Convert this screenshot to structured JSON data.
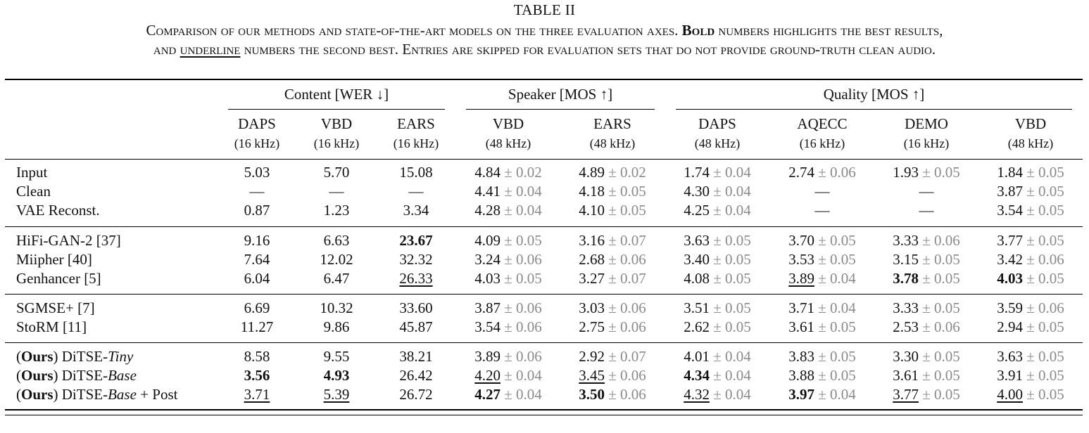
{
  "table_label": "TABLE II",
  "caption": {
    "line1_a": "Comparison of our methods and state-of-the-art models on the three evaluation axes. ",
    "bold_word": "Bold",
    "line1_b": " numbers highlights the best results,",
    "line2_a": "and ",
    "underline_word": "underline",
    "line2_b": " numbers the second best. Entries are skipped for evaluation sets that do not provide ground-truth clean audio."
  },
  "groups": [
    {
      "label": "Content [WER ↓]"
    },
    {
      "label": "Speaker [MOS ↑]"
    },
    {
      "label": "Quality [MOS ↑]"
    }
  ],
  "columns": [
    {
      "name": "DAPS",
      "rate": "(16 kHz)"
    },
    {
      "name": "VBD",
      "rate": "(16 kHz)"
    },
    {
      "name": "EARS",
      "rate": "(16 kHz)"
    },
    {
      "name": "VBD",
      "rate": "(48 kHz)"
    },
    {
      "name": "EARS",
      "rate": "(48 kHz)"
    },
    {
      "name": "DAPS",
      "rate": "(48 kHz)"
    },
    {
      "name": "AQECC",
      "rate": "(16 kHz)"
    },
    {
      "name": "DEMO",
      "rate": "(16 kHz)"
    },
    {
      "name": "VBD",
      "rate": "(48 kHz)"
    }
  ],
  "rows": [
    {
      "label": "Input",
      "cells": [
        {
          "v": "5.03"
        },
        {
          "v": "5.70"
        },
        {
          "v": "15.08"
        },
        {
          "v": "4.84",
          "pm": "0.02"
        },
        {
          "v": "4.89",
          "pm": "0.02"
        },
        {
          "v": "1.74",
          "pm": "0.04"
        },
        {
          "v": "2.74",
          "pm": "0.06"
        },
        {
          "v": "1.93",
          "pm": "0.05"
        },
        {
          "v": "1.84",
          "pm": "0.05"
        }
      ]
    },
    {
      "label": "Clean",
      "cells": [
        {
          "v": "—"
        },
        {
          "v": "—"
        },
        {
          "v": "—"
        },
        {
          "v": "4.41",
          "pm": "0.04"
        },
        {
          "v": "4.18",
          "pm": "0.05"
        },
        {
          "v": "4.30",
          "pm": "0.04"
        },
        {
          "v": "—"
        },
        {
          "v": "—"
        },
        {
          "v": "3.87",
          "pm": "0.05"
        }
      ]
    },
    {
      "label": "VAE Reconst.",
      "cells": [
        {
          "v": "0.87"
        },
        {
          "v": "1.23"
        },
        {
          "v": "3.34"
        },
        {
          "v": "4.28",
          "pm": "0.04"
        },
        {
          "v": "4.10",
          "pm": "0.05"
        },
        {
          "v": "4.25",
          "pm": "0.04"
        },
        {
          "v": "—"
        },
        {
          "v": "—"
        },
        {
          "v": "3.54",
          "pm": "0.05"
        }
      ]
    },
    {
      "label": "HiFi-GAN-2 [37]",
      "cells": [
        {
          "v": "9.16"
        },
        {
          "v": "6.63"
        },
        {
          "v": "23.67",
          "style": "bold"
        },
        {
          "v": "4.09",
          "pm": "0.05"
        },
        {
          "v": "3.16",
          "pm": "0.07"
        },
        {
          "v": "3.63",
          "pm": "0.05"
        },
        {
          "v": "3.70",
          "pm": "0.05"
        },
        {
          "v": "3.33",
          "pm": "0.06"
        },
        {
          "v": "3.77",
          "pm": "0.05"
        }
      ]
    },
    {
      "label": "Miipher [40]",
      "cells": [
        {
          "v": "7.64"
        },
        {
          "v": "12.02"
        },
        {
          "v": "32.32"
        },
        {
          "v": "3.24",
          "pm": "0.06"
        },
        {
          "v": "2.68",
          "pm": "0.06"
        },
        {
          "v": "3.40",
          "pm": "0.05"
        },
        {
          "v": "3.53",
          "pm": "0.05"
        },
        {
          "v": "3.15",
          "pm": "0.05"
        },
        {
          "v": "3.42",
          "pm": "0.06"
        }
      ]
    },
    {
      "label": "Genhancer [5]",
      "cells": [
        {
          "v": "6.04"
        },
        {
          "v": "6.47"
        },
        {
          "v": "26.33",
          "style": "ul"
        },
        {
          "v": "4.03",
          "pm": "0.05"
        },
        {
          "v": "3.27",
          "pm": "0.07"
        },
        {
          "v": "4.08",
          "pm": "0.05"
        },
        {
          "v": "3.89",
          "pm": "0.04",
          "style": "ul"
        },
        {
          "v": "3.78",
          "pm": "0.05",
          "style": "bold"
        },
        {
          "v": "4.03",
          "pm": "0.05",
          "style": "bold"
        }
      ]
    },
    {
      "label": "SGMSE+ [7]",
      "cells": [
        {
          "v": "6.69"
        },
        {
          "v": "10.32"
        },
        {
          "v": "33.60"
        },
        {
          "v": "3.87",
          "pm": "0.06"
        },
        {
          "v": "3.03",
          "pm": "0.06"
        },
        {
          "v": "3.51",
          "pm": "0.05"
        },
        {
          "v": "3.71",
          "pm": "0.04"
        },
        {
          "v": "3.33",
          "pm": "0.05"
        },
        {
          "v": "3.59",
          "pm": "0.06"
        }
      ]
    },
    {
      "label": "StoRM [11]",
      "cells": [
        {
          "v": "11.27"
        },
        {
          "v": "9.86"
        },
        {
          "v": "45.87"
        },
        {
          "v": "3.54",
          "pm": "0.06"
        },
        {
          "v": "2.75",
          "pm": "0.06"
        },
        {
          "v": "2.62",
          "pm": "0.05"
        },
        {
          "v": "3.61",
          "pm": "0.05"
        },
        {
          "v": "2.53",
          "pm": "0.06"
        },
        {
          "v": "2.94",
          "pm": "0.05"
        }
      ]
    },
    {
      "label_parts": [
        "(",
        "Ours",
        ") DiTSE-",
        "Tiny",
        ""
      ],
      "cells": [
        {
          "v": "8.58"
        },
        {
          "v": "9.55"
        },
        {
          "v": "38.21"
        },
        {
          "v": "3.89",
          "pm": "0.06"
        },
        {
          "v": "2.92",
          "pm": "0.07"
        },
        {
          "v": "4.01",
          "pm": "0.04"
        },
        {
          "v": "3.83",
          "pm": "0.05"
        },
        {
          "v": "3.30",
          "pm": "0.05"
        },
        {
          "v": "3.63",
          "pm": "0.05"
        }
      ]
    },
    {
      "label_parts": [
        "(",
        "Ours",
        ") DiTSE-",
        "Base",
        ""
      ],
      "cells": [
        {
          "v": "3.56",
          "style": "bold"
        },
        {
          "v": "4.93",
          "style": "bold"
        },
        {
          "v": "26.42"
        },
        {
          "v": "4.20",
          "pm": "0.04",
          "style": "ul"
        },
        {
          "v": "3.45",
          "pm": "0.06",
          "style": "ul"
        },
        {
          "v": "4.34",
          "pm": "0.04",
          "style": "bold"
        },
        {
          "v": "3.88",
          "pm": "0.05"
        },
        {
          "v": "3.61",
          "pm": "0.05"
        },
        {
          "v": "3.91",
          "pm": "0.05"
        }
      ]
    },
    {
      "label_parts": [
        "(",
        "Ours",
        ") DiTSE-",
        "Base",
        " + Post"
      ],
      "cells": [
        {
          "v": "3.71",
          "style": "ul"
        },
        {
          "v": "5.39",
          "style": "ul"
        },
        {
          "v": "26.72"
        },
        {
          "v": "4.27",
          "pm": "0.04",
          "style": "bold"
        },
        {
          "v": "3.50",
          "pm": "0.06",
          "style": "bold"
        },
        {
          "v": "4.32",
          "pm": "0.04",
          "style": "ul"
        },
        {
          "v": "3.97",
          "pm": "0.04",
          "style": "bold"
        },
        {
          "v": "3.77",
          "pm": "0.05",
          "style": "ul"
        },
        {
          "v": "4.00",
          "pm": "0.05",
          "style": "ul"
        }
      ]
    }
  ]
}
